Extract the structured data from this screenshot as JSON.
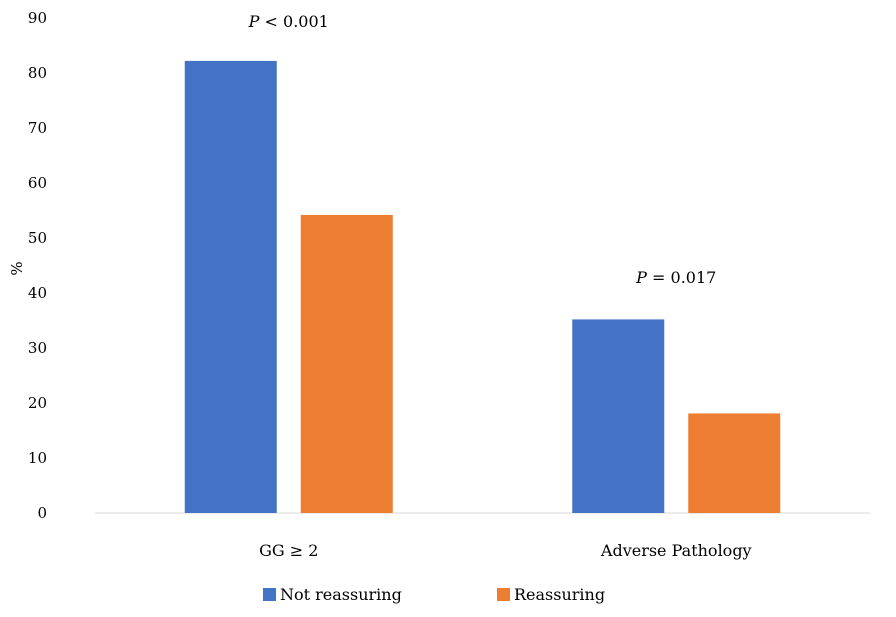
{
  "chart_data": {
    "type": "bar",
    "title": "",
    "xlabel": "",
    "ylabel": "%",
    "ylim": [
      0,
      90
    ],
    "yticks": [
      0,
      10,
      20,
      30,
      40,
      50,
      60,
      70,
      80,
      90
    ],
    "grid": false,
    "legend_position": "bottom",
    "categories": [
      "GG  ≥ 2",
      "Adverse Pathology"
    ],
    "series": [
      {
        "name": "Not reassuring",
        "color": "#4472c4",
        "values": [
          82.2,
          35.2
        ]
      },
      {
        "name": "Reassuring",
        "color": "#ed7d31",
        "values": [
          54.2,
          18.1
        ]
      }
    ],
    "annotations": [
      {
        "category_index": 0,
        "italic": "P",
        "rest": " < 0.001"
      },
      {
        "category_index": 1,
        "italic": "P",
        "rest": " = 0.017"
      }
    ]
  }
}
